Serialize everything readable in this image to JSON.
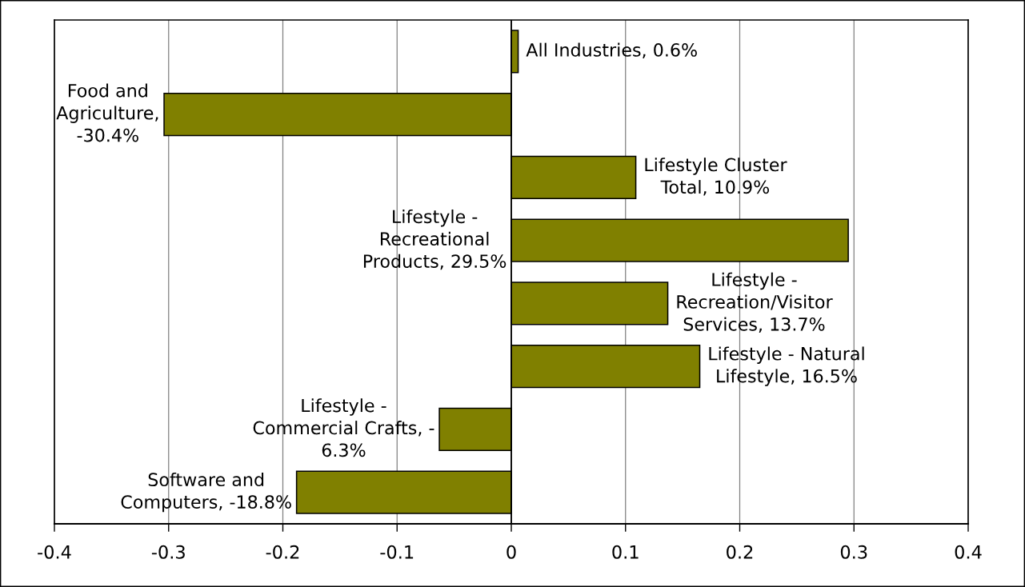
{
  "chart_data": {
    "type": "bar",
    "orientation": "horizontal",
    "categories": [
      null,
      null,
      null,
      null,
      null,
      null,
      null,
      null
    ],
    "values": [
      0.006,
      -0.304,
      0.109,
      0.295,
      0.137,
      0.165,
      -0.063,
      -0.188
    ],
    "color": "#808000",
    "value_labels": [
      "All Industries, 0.6%",
      "Food and\nAgriculture,\n-30.4%",
      "Lifestyle Cluster\nTotal, 10.9%",
      "Lifestyle -\nRecreational\nProducts, 29.5%",
      "Lifestyle -\nRecreation/Visitor\nServices, 13.7%",
      "Lifestyle - Natural\nLifestyle, 16.5%",
      "Lifestyle -\nCommercial Crafts, -\n6.3%",
      "Software and\nComputers, -18.8%"
    ],
    "xlim": [
      -0.4,
      0.4
    ],
    "xticks": [
      -0.4,
      -0.3,
      -0.2,
      -0.1,
      0,
      0.1,
      0.2,
      0.3,
      0.4
    ],
    "ref_lines": [
      {
        "axis": "x",
        "value": 0,
        "color": "#000000"
      }
    ],
    "grid": "x",
    "legend": false,
    "tick_labels": "x"
  }
}
